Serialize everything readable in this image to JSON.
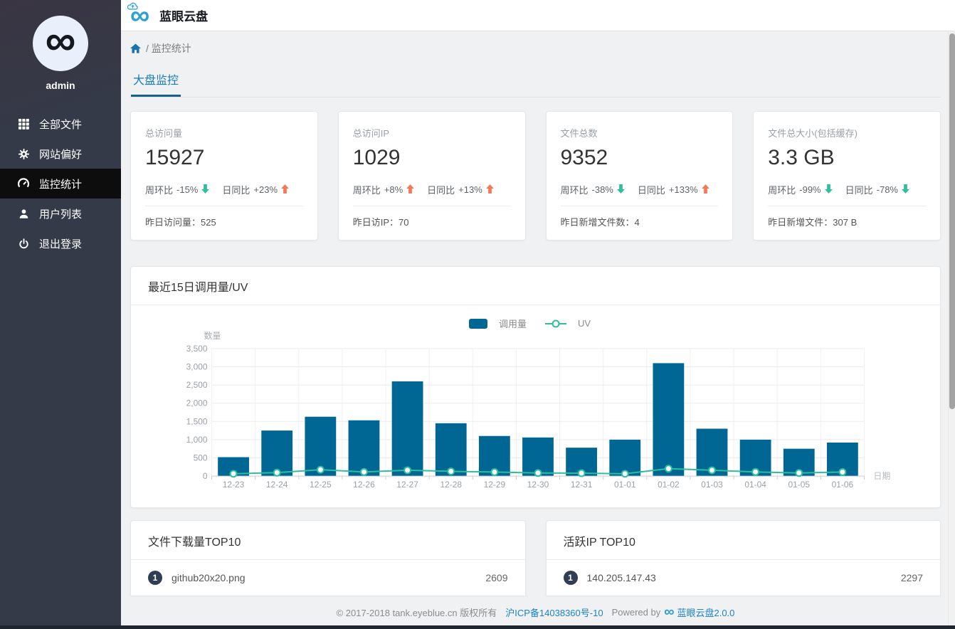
{
  "app": {
    "title": "蓝眼云盘",
    "logo_glyph": "∞"
  },
  "sidebar": {
    "username": "admin",
    "items": [
      {
        "label": "全部文件",
        "icon": "grid-icon",
        "active": false
      },
      {
        "label": "网站偏好",
        "icon": "gear-icon",
        "active": false
      },
      {
        "label": "监控统计",
        "icon": "dashboard-icon",
        "active": true
      },
      {
        "label": "用户列表",
        "icon": "user-icon",
        "active": false
      },
      {
        "label": "退出登录",
        "icon": "power-icon",
        "active": false
      }
    ]
  },
  "breadcrumb": {
    "path": "/ 监控统计"
  },
  "tabs": [
    {
      "label": "大盘监控",
      "active": true
    }
  ],
  "stats": {
    "cards": [
      {
        "title": "总访问量",
        "value": "15927",
        "week": {
          "label": "周环比",
          "value": "-15%",
          "dir": "down"
        },
        "day": {
          "label": "日同比",
          "value": "+23%",
          "dir": "up"
        },
        "footer_label": "昨日访问量：",
        "footer_value": "525"
      },
      {
        "title": "总访问IP",
        "value": "1029",
        "week": {
          "label": "周环比",
          "value": "+8%",
          "dir": "up"
        },
        "day": {
          "label": "日同比",
          "value": "+13%",
          "dir": "up"
        },
        "footer_label": "昨日访IP：",
        "footer_value": "70"
      },
      {
        "title": "文件总数",
        "value": "9352",
        "week": {
          "label": "周环比",
          "value": "-38%",
          "dir": "down"
        },
        "day": {
          "label": "日同比",
          "value": "+133%",
          "dir": "up"
        },
        "footer_label": "昨日新增文件数：",
        "footer_value": "4"
      },
      {
        "title": "文件总大小(包括缓存)",
        "value": "3.3 GB",
        "week": {
          "label": "周环比",
          "value": "-99%",
          "dir": "down"
        },
        "day": {
          "label": "日同比",
          "value": "-78%",
          "dir": "down"
        },
        "footer_label": "昨日新增文件：",
        "footer_value": "307 B"
      }
    ]
  },
  "chart_card": {
    "title": "最近15日调用量/UV"
  },
  "chart_data": {
    "type": "bar",
    "title": "最近15日调用量/UV",
    "xlabel": "日期",
    "ylabel": "数量",
    "ylim": [
      0,
      3500
    ],
    "ytick_step": 500,
    "grid": true,
    "legend_position": "top-center",
    "categories": [
      "12-23",
      "12-24",
      "12-25",
      "12-26",
      "12-27",
      "12-28",
      "12-29",
      "12-30",
      "12-31",
      "01-01",
      "01-02",
      "01-03",
      "01-04",
      "01-05",
      "01-06"
    ],
    "series": [
      {
        "name": "调用量",
        "type": "bar",
        "color": "#006795",
        "values": [
          520,
          1250,
          1630,
          1530,
          2600,
          1450,
          1100,
          1060,
          780,
          1000,
          3100,
          1300,
          1000,
          750,
          920
        ]
      },
      {
        "name": "UV",
        "type": "line",
        "color": "#2bbf9b",
        "values": [
          65,
          95,
          175,
          115,
          160,
          130,
          110,
          85,
          80,
          65,
          205,
          160,
          115,
          85,
          110
        ]
      }
    ]
  },
  "top_lists": [
    {
      "title": "文件下载量TOP10",
      "rows": [
        {
          "rank": "1",
          "name": "github20x20.png",
          "value": "2609"
        }
      ]
    },
    {
      "title": "活跃IP TOP10",
      "rows": [
        {
          "rank": "1",
          "name": "140.205.147.43",
          "value": "2297"
        }
      ]
    }
  ],
  "footer": {
    "copyright": "© 2017-2018 tank.eyeblue.cn 版权所有",
    "icp": "沪ICP备14038360号-10",
    "powered_by": "Powered by",
    "product": "蓝眼云盘2.0.0"
  },
  "colors": {
    "accent_blue": "#1a7db5",
    "tab_underline": "#14608f",
    "bar": "#006795",
    "uv_line": "#2bbf9b",
    "trend_up": "#f3795b",
    "trend_down": "#2fbf9e",
    "link": "#1c83c6",
    "sidebar_bg": "#343a48",
    "sidebar_active": "#0d0d0d",
    "badge": "#2f3e52"
  }
}
